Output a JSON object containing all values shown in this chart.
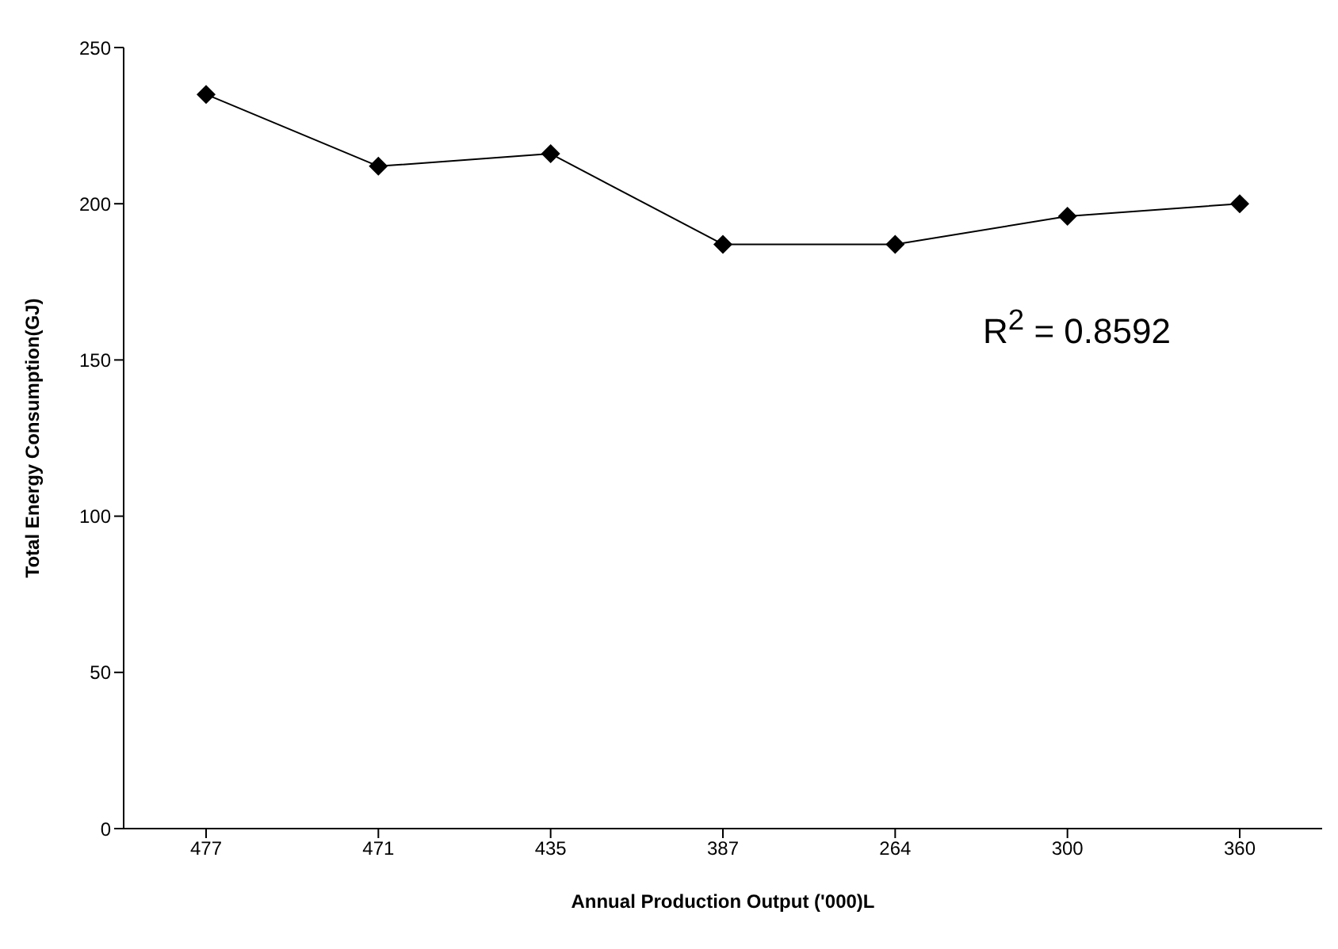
{
  "chart_data": {
    "type": "line",
    "xlabel": "Annual Production Output ('000)L",
    "ylabel": "Total Energy Consumption(GJ)",
    "categories": [
      "477",
      "471",
      "435",
      "387",
      "264",
      "300",
      "360"
    ],
    "values": [
      235,
      212,
      216,
      187,
      187,
      196,
      200
    ],
    "color": "#000000",
    "marker": "diamond",
    "ylim": [
      0,
      250
    ],
    "yticks": [
      0,
      50,
      100,
      150,
      200,
      250
    ],
    "annotations": [
      "R$^{2}$ = 0.8592"
    ]
  }
}
